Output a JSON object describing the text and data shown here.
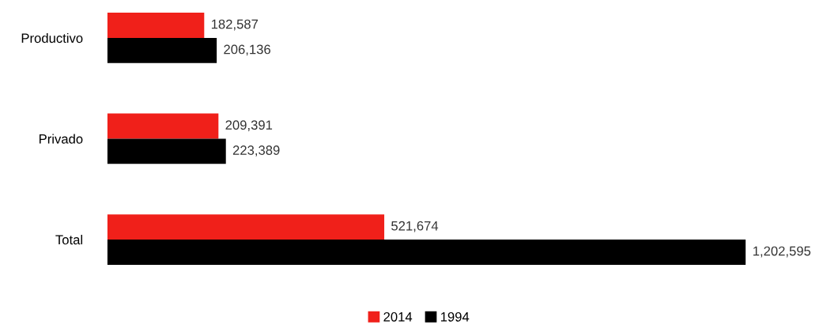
{
  "chart_data": {
    "type": "bar",
    "orientation": "horizontal",
    "categories": [
      "Productivo",
      "Privado",
      "Total"
    ],
    "series": [
      {
        "name": "2014",
        "color": "#f0201a",
        "values": [
          182587,
          209391,
          521674
        ],
        "value_labels": [
          "182,587",
          "209,391",
          "521,674"
        ]
      },
      {
        "name": "1994",
        "color": "#000000",
        "values": [
          206136,
          223389,
          1202595
        ],
        "value_labels": [
          "206,136",
          "223,389",
          "1,202,595"
        ]
      }
    ],
    "legend": "bottom",
    "tick_labels": "y",
    "grid": false
  }
}
